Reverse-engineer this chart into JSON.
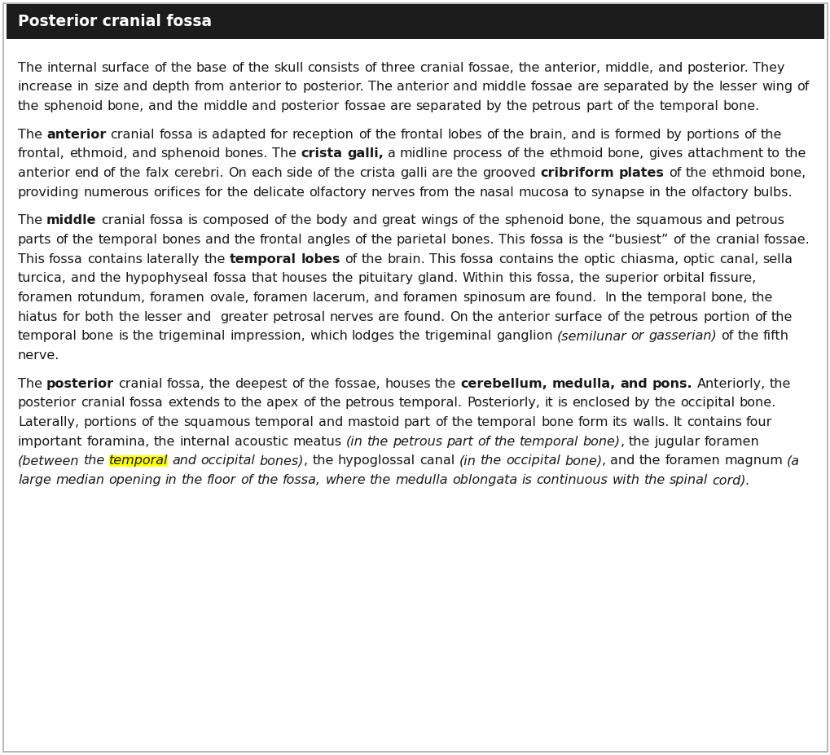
{
  "title": "Posterior cranial fossa",
  "title_bg": "#1c1c1c",
  "title_color": "#ffffff",
  "title_fontsize": 13.5,
  "body_fontsize": 11.5,
  "bg_color": "#ffffff",
  "border_color": "#aaaaaa",
  "paragraphs": [
    {
      "segments": [
        {
          "text": "The internal surface of the base of the skull consists of three cranial fossae, the anterior, middle, and posterior. They increase in size and depth from anterior to posterior. The anterior and middle fossae are separated by the lesser wing of the sphenoid bone, and the middle and posterior fossae are separated by the petrous part of the temporal bone.",
          "style": "normal"
        }
      ]
    },
    {
      "segments": [
        {
          "text": "The ",
          "style": "normal"
        },
        {
          "text": "anterior",
          "style": "bold"
        },
        {
          "text": " cranial fossa is adapted for reception of the frontal lobes of the brain, and is formed by portions of the frontal, ethmoid, and sphenoid bones. The ",
          "style": "normal"
        },
        {
          "text": "crista galli,",
          "style": "bold"
        },
        {
          "text": " a midline process of the ethmoid bone, gives attachment to the anterior end of the falx cerebri. On each side of the crista galli are the grooved ",
          "style": "normal"
        },
        {
          "text": "cribriform plates",
          "style": "bold"
        },
        {
          "text": " of the ethmoid bone, providing numerous orifices for the delicate olfactory nerves from the nasal mucosa to synapse in the olfactory bulbs.",
          "style": "normal"
        }
      ]
    },
    {
      "segments": [
        {
          "text": "The ",
          "style": "normal"
        },
        {
          "text": "middle",
          "style": "bold"
        },
        {
          "text": " cranial fossa is composed of the body and great wings of the sphenoid bone, the squamous and petrous parts of the temporal bones and the frontal angles of the parietal bones. This fossa is the “busiest” of the cranial fossae. This fossa contains laterally the ",
          "style": "normal"
        },
        {
          "text": "temporal lobes",
          "style": "bold"
        },
        {
          "text": " of the brain. This fossa contains the optic chiasma, optic canal, sella turcica, and the hypophyseal fossa that houses the pituitary gland. Within this fossa, the superior orbital fissure, foramen rotundum, foramen ovale, foramen lacerum, and foramen spinosum are found.  In the temporal bone, the hiatus for both the lesser and  greater petrosal nerves are found. On the anterior surface of the petrous portion of the temporal bone is the trigeminal impression, which lodges the trigeminal ganglion ",
          "style": "normal"
        },
        {
          "text": "(semilunar or gasserian)",
          "style": "italic"
        },
        {
          "text": " of the fifth nerve.",
          "style": "normal"
        }
      ]
    },
    {
      "segments": [
        {
          "text": "The ",
          "style": "normal"
        },
        {
          "text": "posterior",
          "style": "bold"
        },
        {
          "text": " cranial fossa, the deepest of the fossae, houses the ",
          "style": "normal"
        },
        {
          "text": "cerebellum, medulla, and pons.",
          "style": "bold"
        },
        {
          "text": " Anteriorly, the posterior cranial fossa extends to the apex of the petrous temporal. Posteriorly, it is enclosed by the occipital bone. Laterally, portions of the squamous temporal and mastoid part of the temporal bone form its walls. It contains four important foramina, the internal acoustic meatus ",
          "style": "normal"
        },
        {
          "text": "(in the petrous part of the temporal bone)",
          "style": "italic"
        },
        {
          "text": ", the jugular foramen ",
          "style": "normal"
        },
        {
          "text": "(between the ",
          "style": "italic"
        },
        {
          "text": "temporal",
          "style": "italic_highlight"
        },
        {
          "text": " and occipital bones)",
          "style": "italic"
        },
        {
          "text": ", the hypoglossal canal ",
          "style": "normal"
        },
        {
          "text": "(in the occipital bone)",
          "style": "italic"
        },
        {
          "text": ", and the foramen magnum ",
          "style": "normal"
        },
        {
          "text": "(a large median opening in the floor of the fossa, where the medulla oblongata is continuous with the spinal cord).",
          "style": "italic"
        }
      ]
    }
  ]
}
